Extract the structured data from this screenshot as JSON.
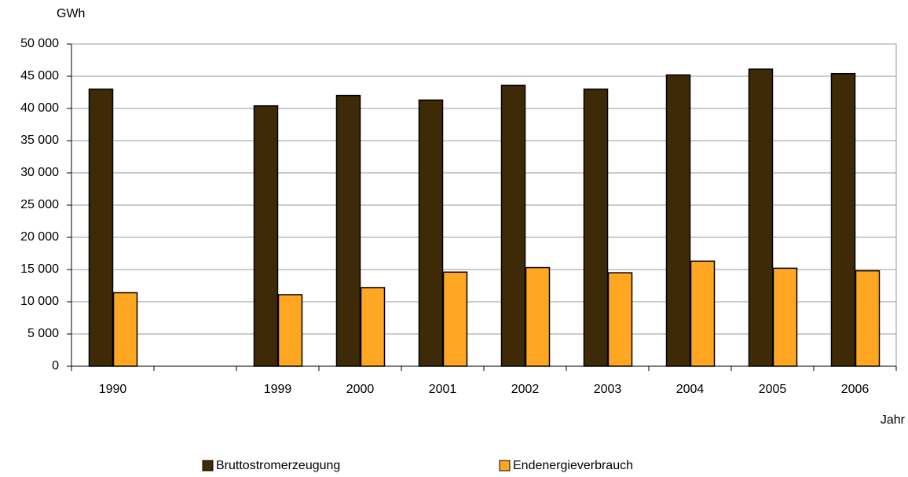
{
  "chart_data": {
    "type": "bar",
    "y_label": "GWh",
    "x_label": "Jahr",
    "categories": [
      "1990",
      null,
      "1999",
      "2000",
      "2001",
      "2002",
      "2003",
      "2004",
      "2005",
      "2006"
    ],
    "series": [
      {
        "name": "Bruttostromerzeugung",
        "color": "#3f2a08",
        "values": [
          43000,
          null,
          40400,
          42000,
          41300,
          43600,
          43000,
          45200,
          46100,
          45400
        ]
      },
      {
        "name": "Endenergieverbrauch",
        "color": "#ffa722",
        "values": [
          11400,
          null,
          11100,
          12200,
          14600,
          15300,
          14500,
          16300,
          15200,
          14800
        ]
      }
    ],
    "ylim": [
      0,
      50000
    ],
    "yticks": [
      0,
      {
        "value": 5000,
        "label": "5 000"
      },
      {
        "value": 10000,
        "label": "10 000"
      },
      {
        "value": 15000,
        "label": "15 000"
      },
      {
        "value": 20000,
        "label": "20 000"
      },
      {
        "value": 25000,
        "label": "25 000"
      },
      {
        "value": 30000,
        "label": "30 000"
      },
      {
        "value": 35000,
        "label": "35 000"
      },
      {
        "value": 40000,
        "label": "40 000"
      },
      {
        "value": 45000,
        "label": "45 000"
      },
      {
        "value": 50000,
        "label": "50 000"
      }
    ],
    "grid": true,
    "legend": "bottom"
  }
}
